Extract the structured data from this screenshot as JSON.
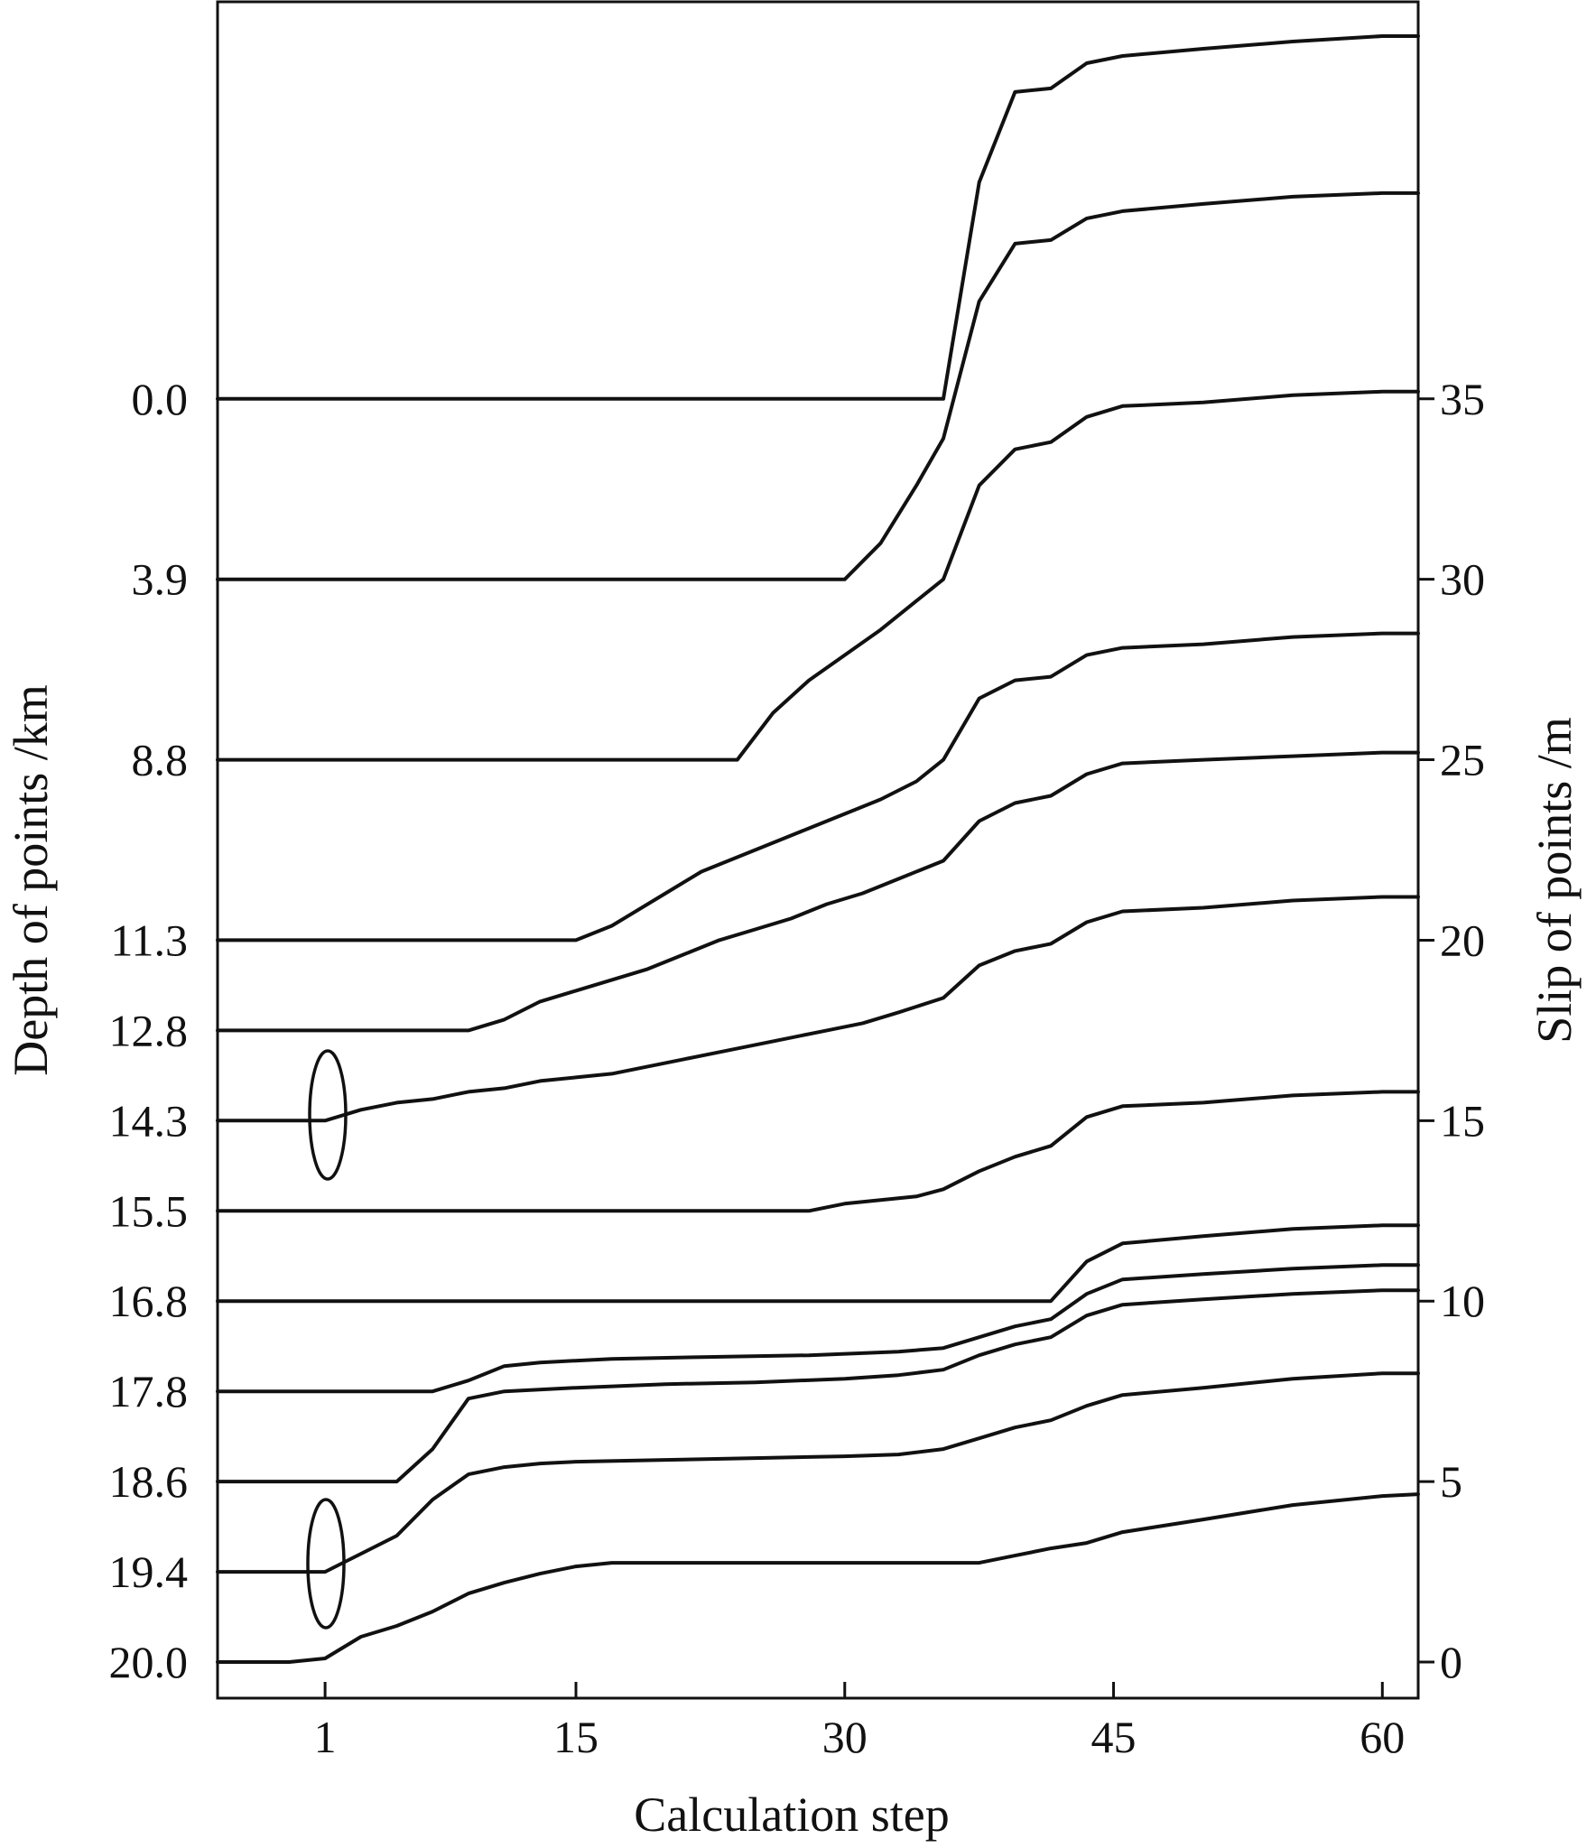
{
  "chart_data": {
    "type": "line",
    "title": "",
    "xlabel": "Calculation step",
    "ylabel_left": "Depth of points /km",
    "ylabel_right": "Slip of points /m",
    "x_ticks": [
      "1",
      "15",
      "30",
      "45",
      "60"
    ],
    "x_tick_values": [
      1,
      15,
      30,
      45,
      60
    ],
    "xlim": [
      -5,
      62
    ],
    "right_ticks": [
      "35",
      "30",
      "25",
      "20",
      "15",
      "10",
      "5",
      "0"
    ],
    "right_tick_values": [
      35,
      30,
      25,
      20,
      15,
      10,
      5,
      0
    ],
    "ylim": [
      -1,
      46
    ],
    "grid": false,
    "legend": "none",
    "annotations": [
      "ellipse at step 1 on the 14.3 km curve",
      "ellipse at step 1 on the 19.4 km curve"
    ],
    "series": [
      {
        "name": "0.0",
        "baseline": 35.0,
        "points": [
          [
            -5,
            35.0
          ],
          [
            35.5,
            35.0
          ],
          [
            36,
            36.5
          ],
          [
            37.5,
            41
          ],
          [
            39.5,
            43.5
          ],
          [
            41.5,
            43.6
          ],
          [
            43.5,
            44.3
          ],
          [
            45.5,
            44.5
          ],
          [
            50,
            44.7
          ],
          [
            55,
            44.9
          ],
          [
            60,
            45.05
          ],
          [
            62,
            45.05
          ]
        ]
      },
      {
        "name": "3.9",
        "baseline": 30.0,
        "points": [
          [
            -5,
            30.0
          ],
          [
            30,
            30.0
          ],
          [
            32,
            31.0
          ],
          [
            34,
            32.6
          ],
          [
            35.5,
            33.9
          ],
          [
            37.5,
            37.7
          ],
          [
            39.5,
            39.3
          ],
          [
            41.5,
            39.4
          ],
          [
            43.5,
            40.0
          ],
          [
            45.5,
            40.2
          ],
          [
            50,
            40.4
          ],
          [
            55,
            40.6
          ],
          [
            60,
            40.7
          ],
          [
            62,
            40.7
          ]
        ]
      },
      {
        "name": "8.8",
        "baseline": 25.0,
        "points": [
          [
            -5,
            25.0
          ],
          [
            24,
            25.0
          ],
          [
            26,
            26.3
          ],
          [
            28,
            27.2
          ],
          [
            30,
            27.9
          ],
          [
            32,
            28.6
          ],
          [
            34,
            29.4
          ],
          [
            35.5,
            30.0
          ],
          [
            37.5,
            32.6
          ],
          [
            39.5,
            33.6
          ],
          [
            41.5,
            33.8
          ],
          [
            43.5,
            34.5
          ],
          [
            45.5,
            34.8
          ],
          [
            50,
            34.9
          ],
          [
            55,
            35.1
          ],
          [
            60,
            35.2
          ],
          [
            62,
            35.2
          ]
        ]
      },
      {
        "name": "11.3",
        "baseline": 20.0,
        "points": [
          [
            -5,
            20.0
          ],
          [
            15,
            20.0
          ],
          [
            17,
            20.4
          ],
          [
            20,
            21.3
          ],
          [
            22,
            21.9
          ],
          [
            24,
            22.3
          ],
          [
            26,
            22.7
          ],
          [
            28,
            23.1
          ],
          [
            30,
            23.5
          ],
          [
            32,
            23.9
          ],
          [
            34,
            24.4
          ],
          [
            35.5,
            25.0
          ],
          [
            37.5,
            26.7
          ],
          [
            39.5,
            27.2
          ],
          [
            41.5,
            27.3
          ],
          [
            43.5,
            27.9
          ],
          [
            45.5,
            28.1
          ],
          [
            50,
            28.2
          ],
          [
            55,
            28.4
          ],
          [
            60,
            28.5
          ],
          [
            62,
            28.5
          ]
        ]
      },
      {
        "name": "12.8",
        "baseline": 17.5,
        "points": [
          [
            -5,
            17.5
          ],
          [
            9,
            17.5
          ],
          [
            11,
            17.8
          ],
          [
            13,
            18.3
          ],
          [
            15,
            18.6
          ],
          [
            17,
            18.9
          ],
          [
            19,
            19.2
          ],
          [
            21,
            19.6
          ],
          [
            23,
            20.0
          ],
          [
            25,
            20.3
          ],
          [
            27,
            20.6
          ],
          [
            29,
            21.0
          ],
          [
            31,
            21.3
          ],
          [
            33,
            21.7
          ],
          [
            35.5,
            22.2
          ],
          [
            37.5,
            23.3
          ],
          [
            39.5,
            23.8
          ],
          [
            41.5,
            24.0
          ],
          [
            43.5,
            24.6
          ],
          [
            45.5,
            24.9
          ],
          [
            50,
            25.0
          ],
          [
            55,
            25.1
          ],
          [
            60,
            25.2
          ],
          [
            62,
            25.2
          ]
        ]
      },
      {
        "name": "14.3",
        "baseline": 15.0,
        "points": [
          [
            -5,
            15.0
          ],
          [
            1,
            15.0
          ],
          [
            3,
            15.3
          ],
          [
            5,
            15.5
          ],
          [
            7,
            15.6
          ],
          [
            9,
            15.8
          ],
          [
            11,
            15.9
          ],
          [
            13,
            16.1
          ],
          [
            15,
            16.2
          ],
          [
            17,
            16.3
          ],
          [
            19,
            16.5
          ],
          [
            21,
            16.7
          ],
          [
            23,
            16.9
          ],
          [
            25,
            17.1
          ],
          [
            27,
            17.3
          ],
          [
            29,
            17.5
          ],
          [
            31,
            17.7
          ],
          [
            33,
            18.0
          ],
          [
            35.5,
            18.4
          ],
          [
            37.5,
            19.3
          ],
          [
            39.5,
            19.7
          ],
          [
            41.5,
            19.9
          ],
          [
            43.5,
            20.5
          ],
          [
            45.5,
            20.8
          ],
          [
            50,
            20.9
          ],
          [
            55,
            21.1
          ],
          [
            60,
            21.2
          ],
          [
            62,
            21.2
          ]
        ]
      },
      {
        "name": "15.5",
        "baseline": 12.5,
        "points": [
          [
            -5,
            12.5
          ],
          [
            20,
            12.5
          ],
          [
            25,
            12.5
          ],
          [
            28,
            12.5
          ],
          [
            30,
            12.7
          ],
          [
            32,
            12.8
          ],
          [
            34,
            12.9
          ],
          [
            35.5,
            13.1
          ],
          [
            37.5,
            13.6
          ],
          [
            39.5,
            14.0
          ],
          [
            41.5,
            14.3
          ],
          [
            43.5,
            15.1
          ],
          [
            45.5,
            15.4
          ],
          [
            50,
            15.5
          ],
          [
            55,
            15.7
          ],
          [
            60,
            15.8
          ],
          [
            62,
            15.8
          ]
        ]
      },
      {
        "name": "16.8",
        "baseline": 10.0,
        "points": [
          [
            -5,
            10.0
          ],
          [
            41.5,
            10.0
          ],
          [
            43.5,
            11.1
          ],
          [
            45.5,
            11.6
          ],
          [
            50,
            11.8
          ],
          [
            55,
            12.0
          ],
          [
            60,
            12.1
          ],
          [
            62,
            12.1
          ]
        ]
      },
      {
        "name": "17.8",
        "baseline": 7.5,
        "points": [
          [
            -5,
            7.5
          ],
          [
            7,
            7.5
          ],
          [
            9,
            7.8
          ],
          [
            11,
            8.2
          ],
          [
            13,
            8.3
          ],
          [
            17,
            8.4
          ],
          [
            22,
            8.45
          ],
          [
            28,
            8.5
          ],
          [
            33,
            8.6
          ],
          [
            35.5,
            8.7
          ],
          [
            37.5,
            9.0
          ],
          [
            39.5,
            9.3
          ],
          [
            41.5,
            9.5
          ],
          [
            43.5,
            10.2
          ],
          [
            45.5,
            10.6
          ],
          [
            50,
            10.75
          ],
          [
            55,
            10.9
          ],
          [
            60,
            11.0
          ],
          [
            62,
            11.0
          ]
        ]
      },
      {
        "name": "18.6",
        "baseline": 5.0,
        "points": [
          [
            -5,
            5.0
          ],
          [
            5,
            5.0
          ],
          [
            7,
            5.9
          ],
          [
            9,
            7.3
          ],
          [
            11,
            7.5
          ],
          [
            15,
            7.6
          ],
          [
            20,
            7.7
          ],
          [
            25,
            7.75
          ],
          [
            30,
            7.85
          ],
          [
            33,
            7.95
          ],
          [
            35.5,
            8.1
          ],
          [
            37.5,
            8.5
          ],
          [
            39.5,
            8.8
          ],
          [
            41.5,
            9.0
          ],
          [
            43.5,
            9.6
          ],
          [
            45.5,
            9.9
          ],
          [
            50,
            10.05
          ],
          [
            55,
            10.2
          ],
          [
            60,
            10.3
          ],
          [
            62,
            10.3
          ]
        ]
      },
      {
        "name": "19.4",
        "baseline": 2.5,
        "points": [
          [
            -5,
            2.5
          ],
          [
            1,
            2.5
          ],
          [
            3,
            3.0
          ],
          [
            5,
            3.5
          ],
          [
            7,
            4.5
          ],
          [
            9,
            5.2
          ],
          [
            11,
            5.4
          ],
          [
            13,
            5.5
          ],
          [
            15,
            5.55
          ],
          [
            20,
            5.6
          ],
          [
            25,
            5.65
          ],
          [
            30,
            5.7
          ],
          [
            33,
            5.75
          ],
          [
            35.5,
            5.9
          ],
          [
            37.5,
            6.2
          ],
          [
            39.5,
            6.5
          ],
          [
            41.5,
            6.7
          ],
          [
            43.5,
            7.1
          ],
          [
            45.5,
            7.4
          ],
          [
            50,
            7.6
          ],
          [
            55,
            7.85
          ],
          [
            60,
            8.0
          ],
          [
            62,
            8.0
          ]
        ]
      },
      {
        "name": "20.0",
        "baseline": 0.0,
        "points": [
          [
            -5,
            0.0
          ],
          [
            -1,
            0.0
          ],
          [
            1,
            0.1
          ],
          [
            3,
            0.7
          ],
          [
            5,
            1.0
          ],
          [
            7,
            1.4
          ],
          [
            9,
            1.9
          ],
          [
            11,
            2.2
          ],
          [
            13,
            2.45
          ],
          [
            15,
            2.65
          ],
          [
            17,
            2.75
          ],
          [
            20,
            2.75
          ],
          [
            30,
            2.75
          ],
          [
            37.5,
            2.75
          ],
          [
            39.5,
            2.95
          ],
          [
            41.5,
            3.15
          ],
          [
            43.5,
            3.3
          ],
          [
            45.5,
            3.6
          ],
          [
            50,
            3.95
          ],
          [
            55,
            4.35
          ],
          [
            60,
            4.6
          ],
          [
            62,
            4.65
          ]
        ]
      }
    ]
  }
}
